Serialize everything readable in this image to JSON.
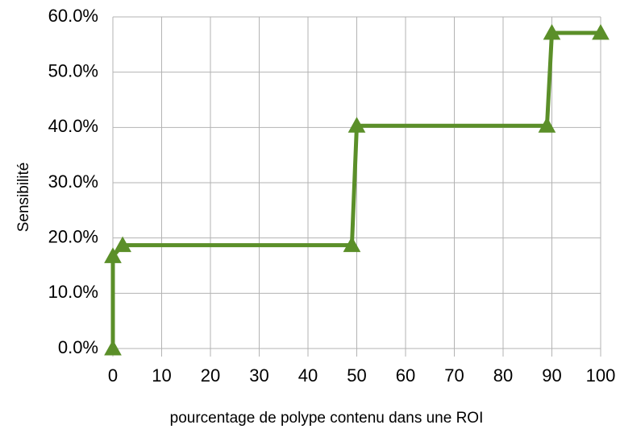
{
  "chart_data": {
    "type": "line",
    "x_label": "pourcentage de polype contenu dans une ROI",
    "y_label": "Sensibilité",
    "series": [
      {
        "name": "Sensibilité",
        "color": "#5b8f29",
        "marker": "triangle",
        "x": [
          0,
          0,
          2,
          49,
          50,
          89,
          90,
          100
        ],
        "values": [
          0,
          16.7,
          18.7,
          18.7,
          40.3,
          40.3,
          57.1,
          57.1
        ]
      }
    ],
    "xlim": [
      0,
      100
    ],
    "xticks": [
      0,
      10,
      20,
      30,
      40,
      50,
      60,
      70,
      80,
      90,
      100
    ],
    "ylim": [
      0,
      60
    ],
    "yticks": [
      {
        "value": 0,
        "label": "0.0%"
      },
      {
        "value": 10,
        "label": "10.0%"
      },
      {
        "value": 20,
        "label": "20.0%"
      },
      {
        "value": 30,
        "label": "30.0%"
      },
      {
        "value": 40,
        "label": "40.0%"
      },
      {
        "value": 50,
        "label": "50.0%"
      },
      {
        "value": 60,
        "label": "60.0%"
      }
    ],
    "grid": true
  }
}
